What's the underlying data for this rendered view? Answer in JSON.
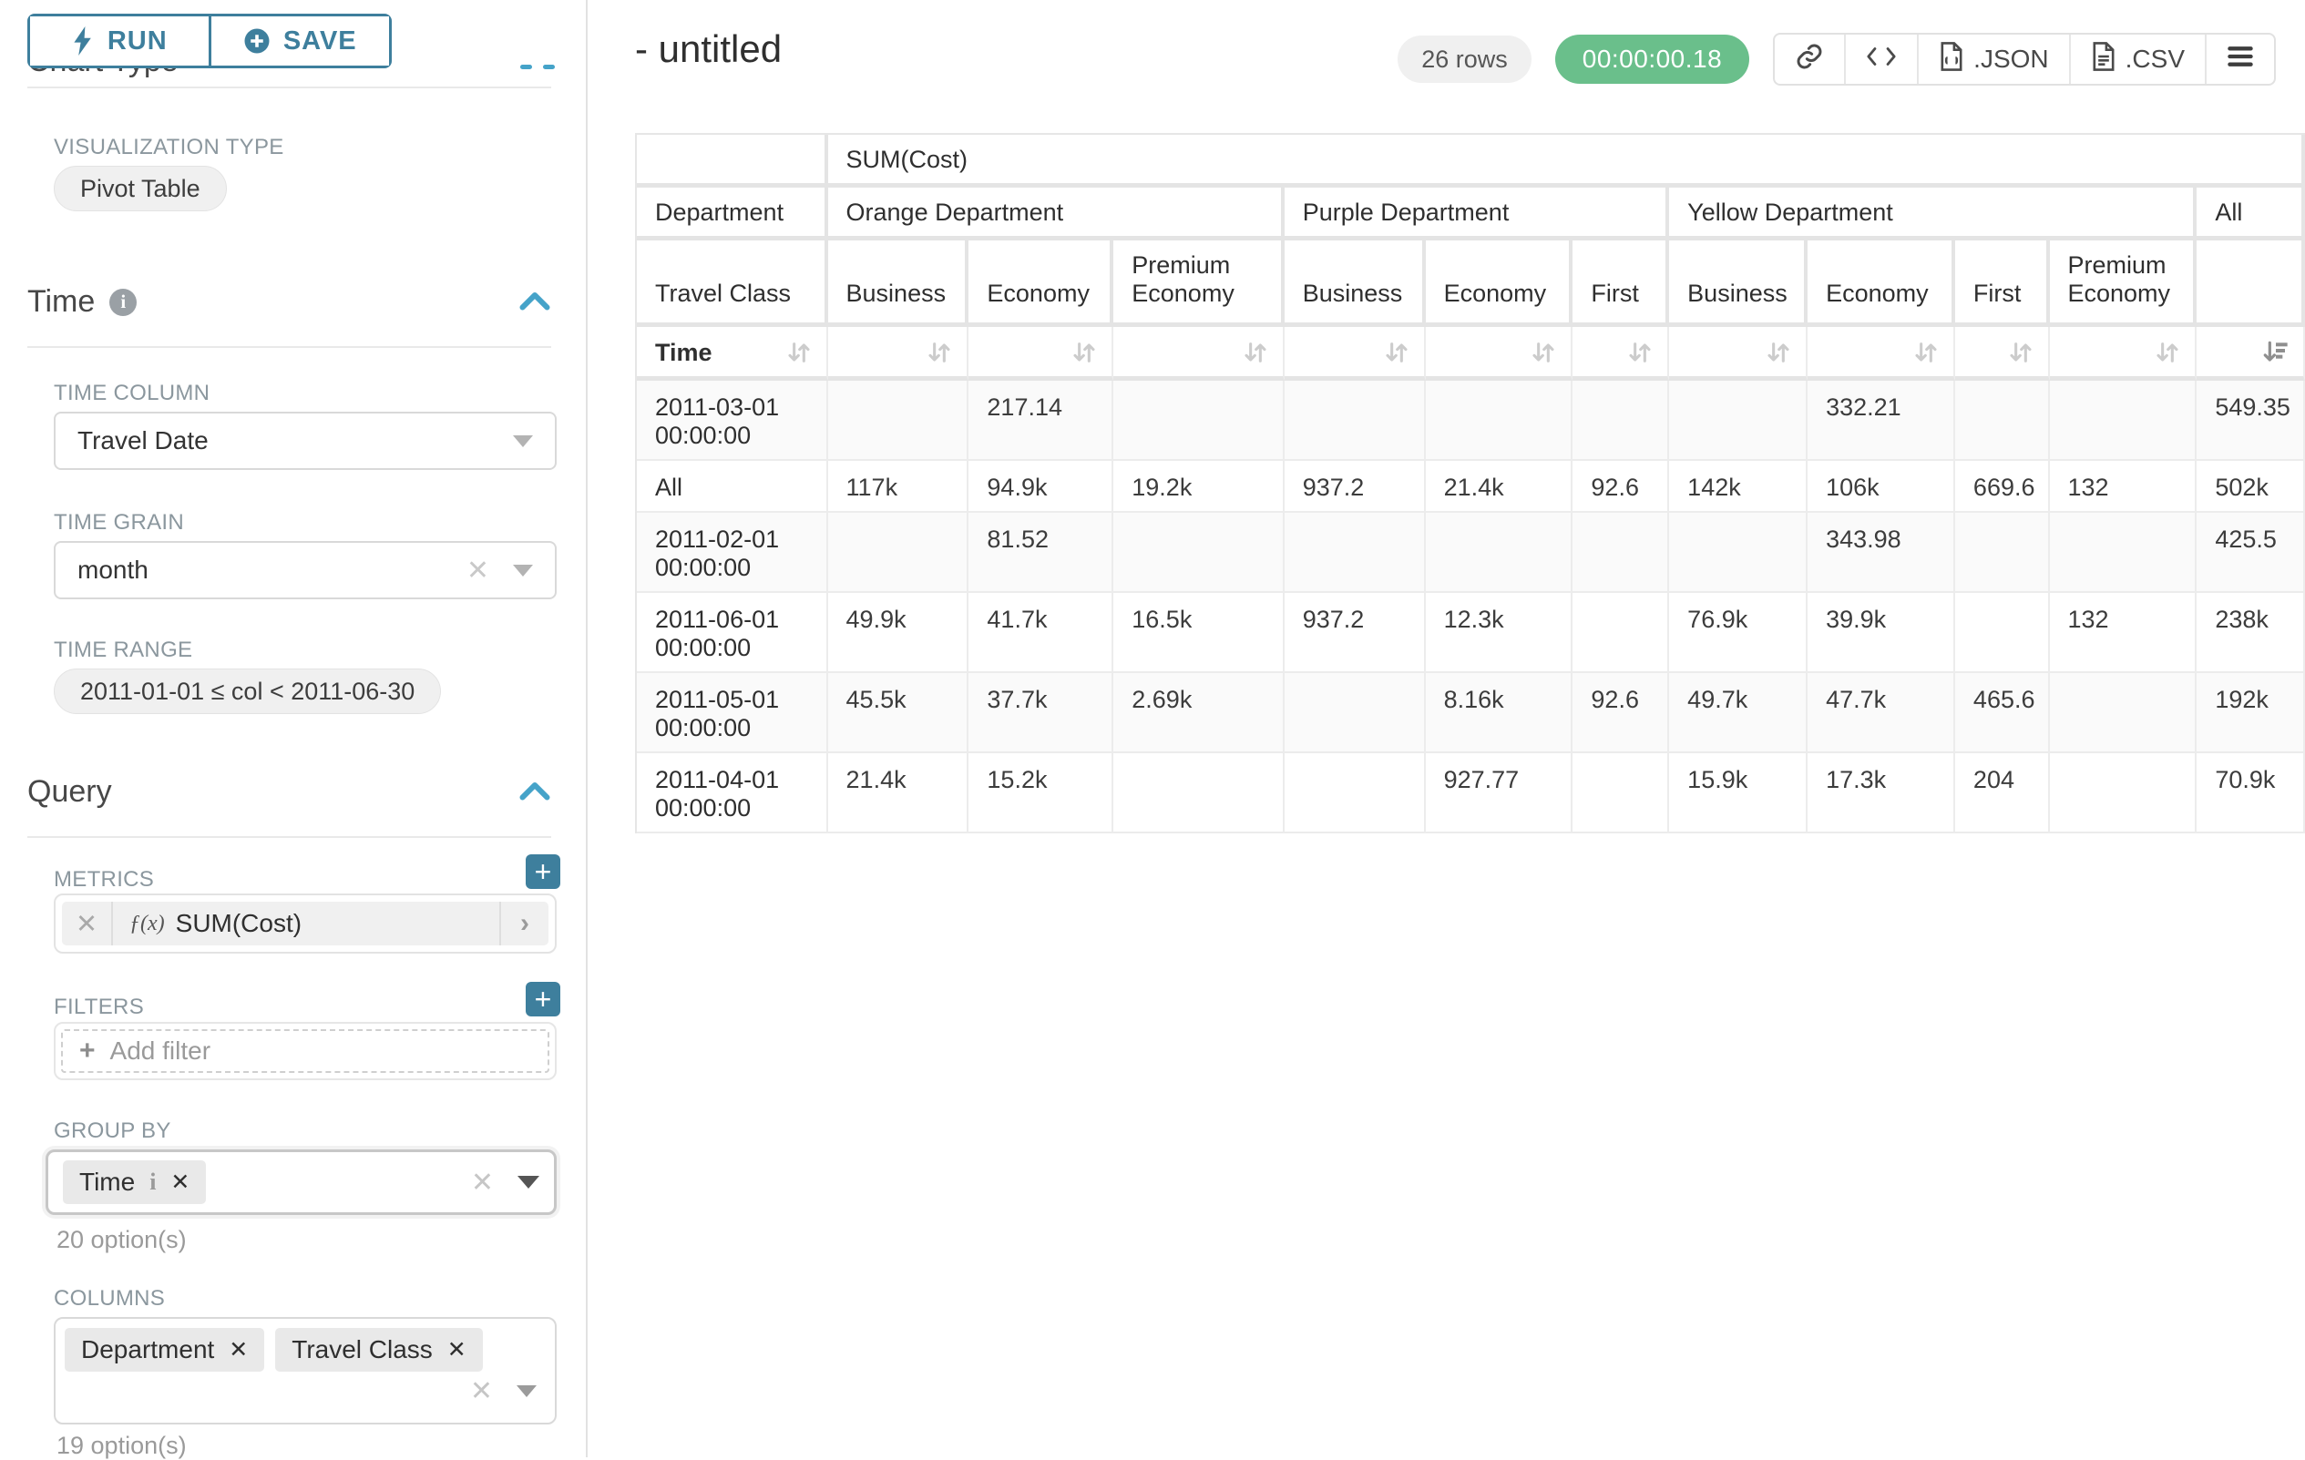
{
  "colors": {
    "accent_teal": "#3e7f9d",
    "chevron_blue": "#45a3c9",
    "success_green": "#6abf8b",
    "pill_gray": "#f0f0f0",
    "label_gray": "#8b979e",
    "sort_inactive": "#cccccc",
    "sort_active": "#8f8f8f"
  },
  "sidebar": {
    "run_label": "RUN",
    "save_label": "SAVE",
    "chart_type_heading": "Chart Type",
    "viz_type": {
      "label": "VISUALIZATION TYPE",
      "value": "Pivot Table"
    },
    "time_section": {
      "title": "Time",
      "time_column": {
        "label": "TIME COLUMN",
        "value": "Travel Date"
      },
      "time_grain": {
        "label": "TIME GRAIN",
        "value": "month"
      },
      "time_range": {
        "label": "TIME RANGE",
        "value": "2011-01-01 ≤ col < 2011-06-30"
      }
    },
    "query_section": {
      "title": "Query",
      "metrics": {
        "label": "METRICS",
        "items": [
          {
            "fx": "ƒ(x)",
            "name": "SUM(Cost)"
          }
        ]
      },
      "filters": {
        "label": "FILTERS",
        "placeholder": "Add filter"
      },
      "group_by": {
        "label": "GROUP BY",
        "tags": [
          "Time"
        ],
        "hint": "20 option(s)"
      },
      "columns": {
        "label": "COLUMNS",
        "tags": [
          "Department",
          "Travel Class"
        ],
        "hint": "19 option(s)"
      }
    }
  },
  "header": {
    "title": "- untitled",
    "row_count": "26 rows",
    "timer": "00:00:00.18",
    "link_icon": "link-icon",
    "code_icon": "code-icon",
    "json_label": ".JSON",
    "csv_label": ".CSV",
    "menu_icon": "hamburger-menu-icon"
  },
  "table": {
    "metric_label": "SUM(Cost)",
    "corner": {
      "department": "Department",
      "travel_class": "Travel Class",
      "time": "Time"
    },
    "dept_groups": [
      {
        "label": "Orange Department",
        "span": 3
      },
      {
        "label": "Purple Department",
        "span": 3
      },
      {
        "label": "Yellow Department",
        "span": 4
      },
      {
        "label": "All",
        "span": 1
      }
    ],
    "class_cols": [
      "Business",
      "Economy",
      "Premium Economy",
      "Business",
      "Economy",
      "First",
      "Business",
      "Economy",
      "First",
      "Premium Economy",
      ""
    ],
    "sorted_col_index": 10,
    "rows": [
      {
        "time": "2011-03-01 00:00:00",
        "values": [
          "",
          "217.14",
          "",
          "",
          "",
          "",
          "",
          "332.21",
          "",
          "",
          "549.35"
        ]
      },
      {
        "time": "All",
        "values": [
          "117k",
          "94.9k",
          "19.2k",
          "937.2",
          "21.4k",
          "92.6",
          "142k",
          "106k",
          "669.6",
          "132",
          "502k"
        ]
      },
      {
        "time": "2011-02-01 00:00:00",
        "values": [
          "",
          "81.52",
          "",
          "",
          "",
          "",
          "",
          "343.98",
          "",
          "",
          "425.5"
        ]
      },
      {
        "time": "2011-06-01 00:00:00",
        "values": [
          "49.9k",
          "41.7k",
          "16.5k",
          "937.2",
          "12.3k",
          "",
          "76.9k",
          "39.9k",
          "",
          "132",
          "238k"
        ]
      },
      {
        "time": "2011-05-01 00:00:00",
        "values": [
          "45.5k",
          "37.7k",
          "2.69k",
          "",
          "8.16k",
          "92.6",
          "49.7k",
          "47.7k",
          "465.6",
          "",
          "192k"
        ]
      },
      {
        "time": "2011-04-01 00:00:00",
        "values": [
          "21.4k",
          "15.2k",
          "",
          "",
          "927.77",
          "",
          "15.9k",
          "17.3k",
          "204",
          "",
          "70.9k"
        ]
      }
    ]
  }
}
